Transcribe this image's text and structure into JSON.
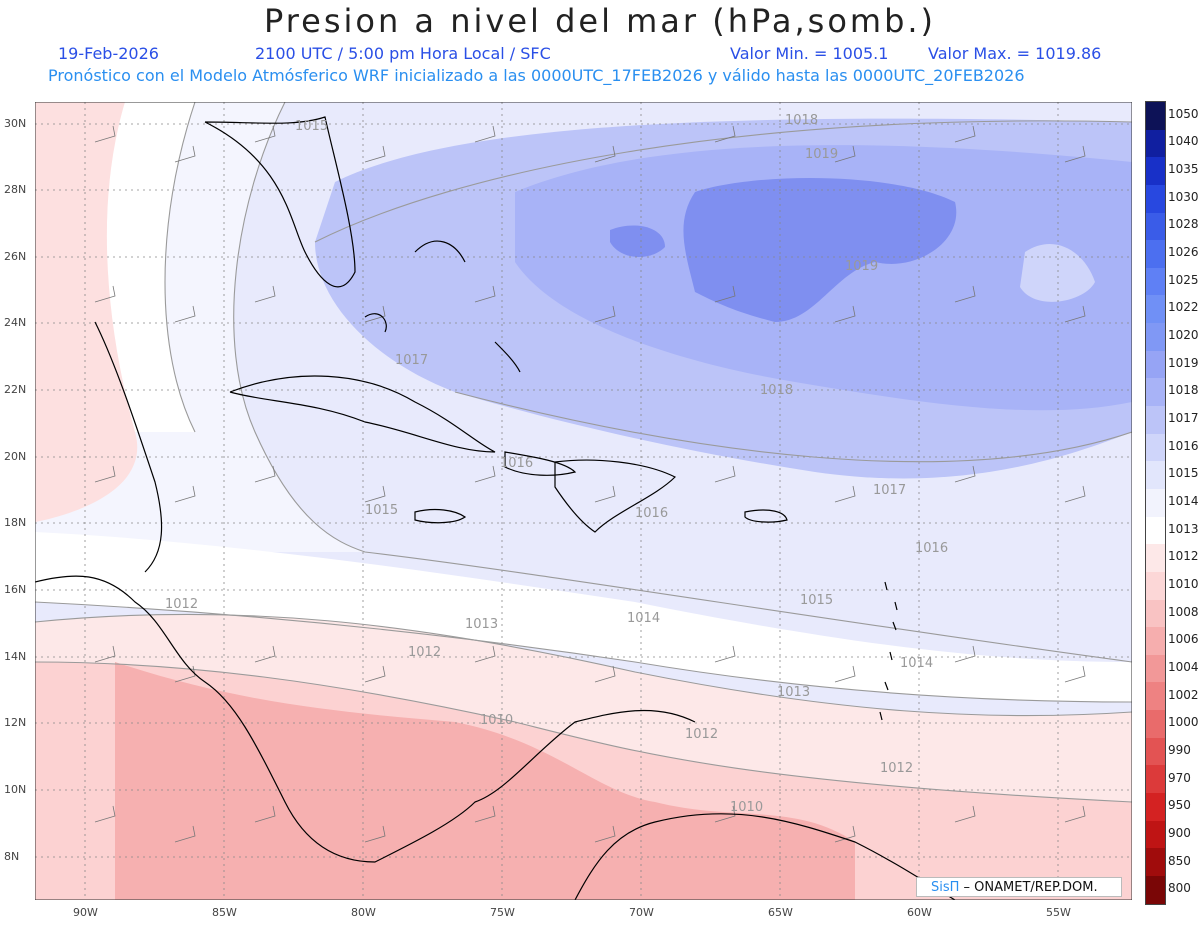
{
  "header": {
    "title": "Presion a nivel del mar (hPa,somb.)",
    "date": "19-Feb-2026",
    "time": "2100 UTC / 5:00 pm Hora Local / SFC",
    "min": "Valor Min. = 1005.1",
    "max": "Valor Max. = 1019.86",
    "model_line": "Pronóstico con el Modelo Atmósferico WRF inicializado a las 0000UTC_17FEB2026 y válido hasta las  0000UTC_20FEB2026"
  },
  "axes": {
    "lat_labels": [
      "30N",
      "28N",
      "26N",
      "24N",
      "22N",
      "20N",
      "18N",
      "16N",
      "14N",
      "12N",
      "10N",
      "8N"
    ],
    "lon_labels": [
      "90W",
      "85W",
      "80W",
      "75W",
      "70W",
      "65W",
      "60W",
      "55W"
    ]
  },
  "contour_labels": [
    "1015",
    "1018",
    "1019",
    "1019",
    "1017",
    "1018",
    "1016",
    "1015",
    "1016",
    "1017",
    "1016",
    "1012",
    "1013",
    "1014",
    "1015",
    "1014",
    "1012",
    "1013",
    "1010",
    "1012",
    "1012",
    "1010"
  ],
  "legend": {
    "levels": [
      "1050",
      "1040",
      "1035",
      "1030",
      "1028",
      "1026",
      "1025",
      "1022",
      "1020",
      "1019",
      "1018",
      "1017",
      "1016",
      "1015",
      "1014",
      "1013",
      "1012",
      "1010",
      "1008",
      "1006",
      "1004",
      "1002",
      "1000",
      "990",
      "970",
      "950",
      "900",
      "850",
      "800"
    ],
    "colors": [
      "#0d1257",
      "#101fa0",
      "#1830c8",
      "#2848e0",
      "#3a5ce8",
      "#4c6ff0",
      "#5f80f5",
      "#7090f6",
      "#8098f5",
      "#96a4f5",
      "#a8b3f7",
      "#bcc4f8",
      "#cfd5fa",
      "#e2e6fc",
      "#f2f3fd",
      "#ffffff",
      "#fde8e8",
      "#fcd7d7",
      "#f9c3c3",
      "#f6aeae",
      "#f29898",
      "#ee8282",
      "#e96b6b",
      "#e35353",
      "#dc3a3a",
      "#d42222",
      "#bf1414",
      "#a00c0c",
      "#7a0606"
    ]
  },
  "credit": {
    "brand": "SisΠ",
    "text": " – ONAMET/REP.DOM."
  }
}
